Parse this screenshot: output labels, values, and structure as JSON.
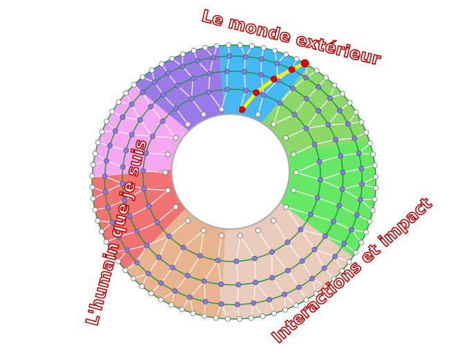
{
  "labels": {
    "top": "Le monde extérieur",
    "left": "L'humain que je suis",
    "right": "Interactions et impact"
  },
  "colors": {
    "label": "#c00000",
    "ring_line": "#1a9a3a",
    "path_highlight": "#ffee00",
    "path_node": "#e00000",
    "inner_node": "#8877ee",
    "edge_node": "#ffffff",
    "sectors": [
      "#45b8f5",
      "#8cd96a",
      "#66e866",
      "#e8cbbb",
      "#e8b490",
      "#f07272",
      "#f4a8f0",
      "#9a7ae8"
    ]
  }
}
